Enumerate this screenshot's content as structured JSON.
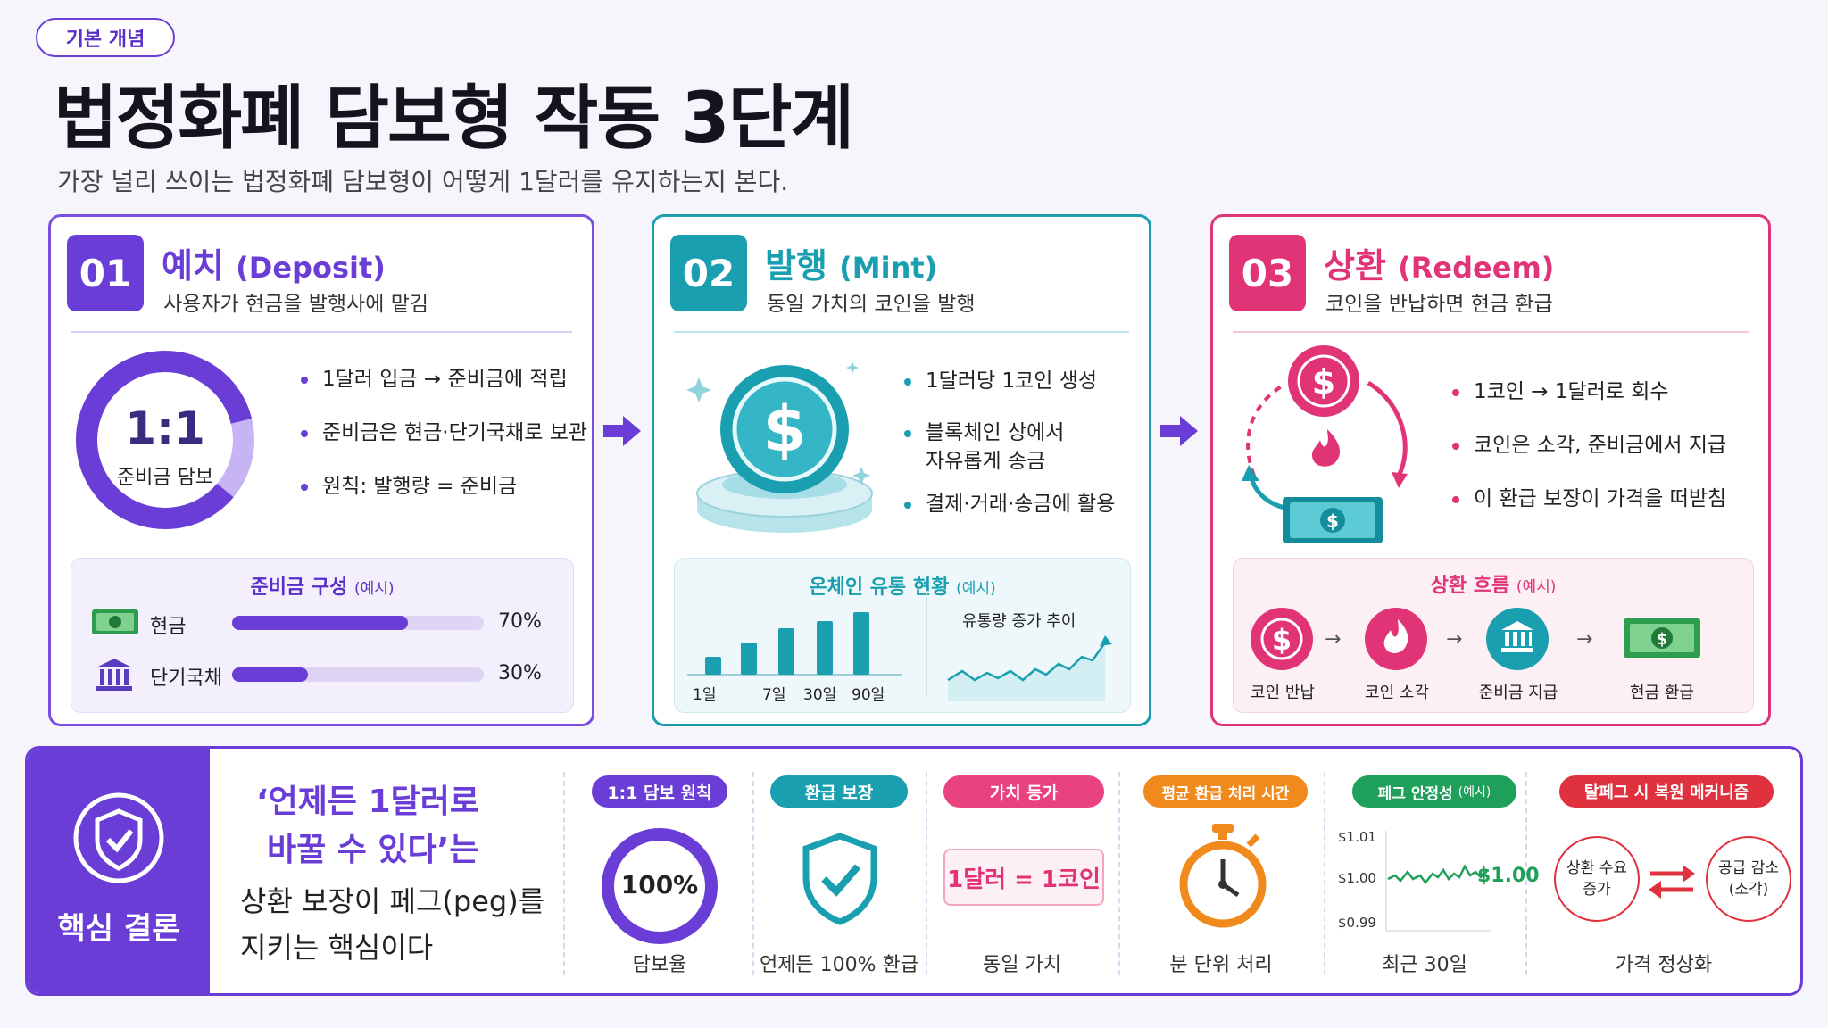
{
  "header": {
    "tag": "기본 개념",
    "title": "법정화폐 담보형 작동 3단계",
    "subtitle": "가장 널리 쓰이는 법정화폐 담보형이 어떻게 1달러를 유지하는지 본다."
  },
  "step1": {
    "number": "01",
    "title": "예치",
    "title_en": "(Deposit)",
    "desc": "사용자가 현금을 발행사에 맡김",
    "donut_value": "1:1",
    "donut_label": "준비금 담보",
    "bullets": [
      "1달러 입금 → 준비금에 적립",
      "준비금은 현금·단기국채로 보관",
      "원칙: 발행량 = 준비금"
    ],
    "reserve_title": "준비금 구성",
    "reserve_note": "(예시)",
    "reserves": [
      {
        "label": "현금",
        "value": "70%",
        "fraction": 0.7
      },
      {
        "label": "단기국채",
        "value": "30%",
        "fraction": 0.3
      }
    ],
    "color": "#6a3ed6"
  },
  "step2": {
    "number": "02",
    "title": "발행",
    "title_en": "(Mint)",
    "desc": "동일 가치의 코인을 발행",
    "bullets": [
      "1달러당 1코인 생성",
      "블록체인 상에서",
      "자유롭게 송금",
      "결제·거래·송금에 활용"
    ],
    "chart_title": "온체인 유통 현황",
    "chart_note": "(예시)",
    "bar_labels": [
      "1일",
      "7일",
      "30일",
      "90일"
    ],
    "trend_label": "유통량 증가 추이",
    "color": "#1a9fb0"
  },
  "step3": {
    "number": "03",
    "title": "상환",
    "title_en": "(Redeem)",
    "desc": "코인을 반납하면 현금 환급",
    "bullets": [
      "1코인 → 1달러로 회수",
      "코인은 소각, 준비금에서 지급",
      "이 환급 보장이 가격을 떠받침"
    ],
    "flow_title": "상환 흐름",
    "flow_note": "(예시)",
    "flow": [
      "코인 반납",
      "코인 소각",
      "준비금 지급",
      "현금 환급"
    ],
    "color": "#e03477"
  },
  "conclusion": {
    "label": "핵심 결론",
    "quote_line1": "‘언제든 1달러로",
    "quote_line2": "바꿀 수 있다’는",
    "text_line1": "상환 보장이 페그(peg)를",
    "text_line2": "지키는 핵심이다",
    "items": [
      {
        "pill": "1:1 담보 원칙",
        "main": "100%",
        "caption": "담보율",
        "color": "#6a3ed6"
      },
      {
        "pill": "환급 보장",
        "caption": "언제든 100% 환급",
        "color": "#1a9fb0"
      },
      {
        "pill": "가치 등가",
        "main": "1달러 = 1코인",
        "caption": "동일 가치",
        "color": "#e8437f"
      },
      {
        "pill": "평균 환급 처리 시간",
        "caption": "분 단위 처리",
        "color": "#f08a1c"
      },
      {
        "pill": "페그 안정성",
        "pill_note": "(예시)",
        "caption": "최근 30일",
        "y_ticks": [
          "$1.01",
          "$1.00",
          "$0.99"
        ],
        "value": "$1.00",
        "color": "#1fa05a"
      },
      {
        "pill": "탈페그 시 복원 메커니즘",
        "left": [
          "상환 수요",
          "증가"
        ],
        "right": [
          "공급 감소",
          "(소각)"
        ],
        "caption": "가격 정상화",
        "color": "#e0323e"
      }
    ]
  }
}
